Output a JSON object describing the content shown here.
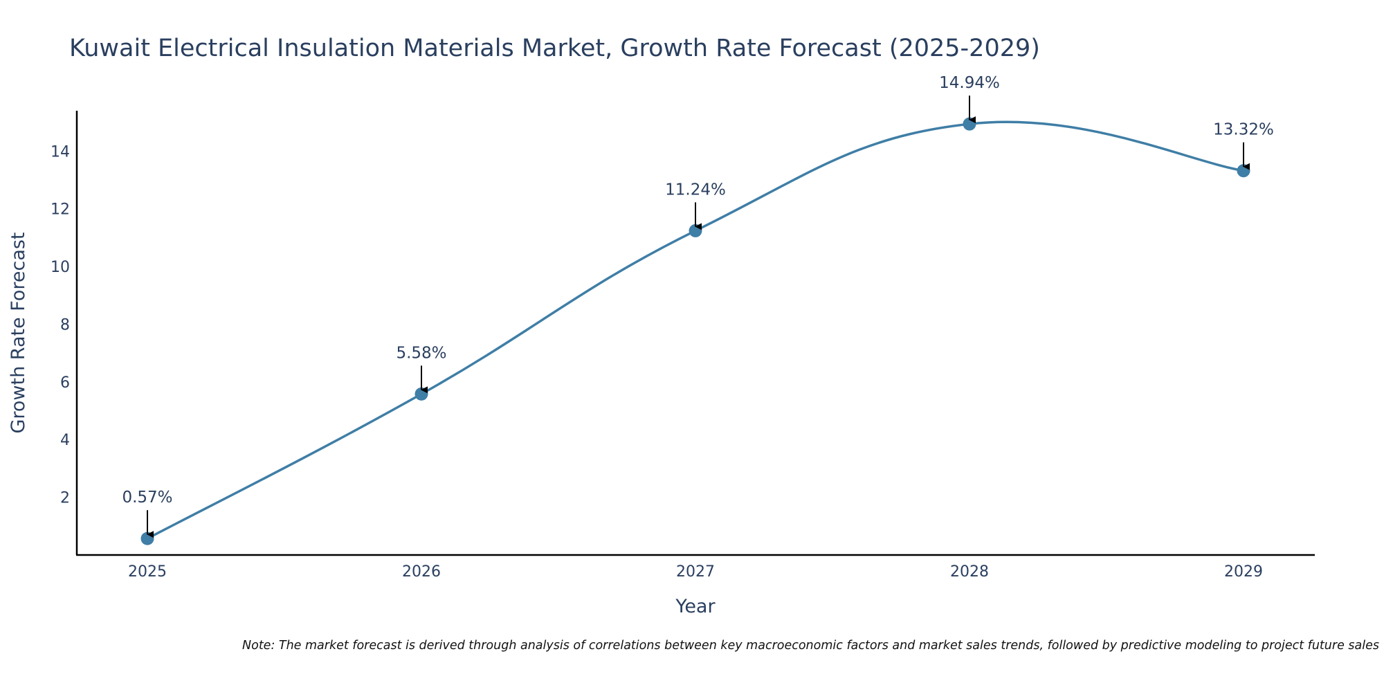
{
  "chart_data": {
    "type": "line",
    "title": "Kuwait Electrical Insulation Materials Market, Growth Rate Forecast (2025-2029)",
    "xlabel": "Year",
    "ylabel": "Growth Rate Forecast",
    "categories": [
      "2025",
      "2026",
      "2027",
      "2028",
      "2029"
    ],
    "values": [
      0.57,
      5.58,
      11.24,
      14.94,
      13.32
    ],
    "data_labels": [
      "0.57%",
      "5.58%",
      "11.24%",
      "14.94%",
      "13.32%"
    ],
    "yticks": [
      2,
      4,
      6,
      8,
      10,
      12,
      14
    ],
    "ylim": [
      0,
      15.4
    ],
    "xlim": [
      2024.74,
      2029.26
    ],
    "grid": false,
    "legend": "none",
    "line_color": "#3f7ea6",
    "marker_color": "#3f7ea6",
    "arrow_color": "#000000",
    "note": "Note: The market forecast is derived through analysis of correlations between key macroeconomic factors and market sales trends, followed by predictive modeling to project future sales"
  }
}
